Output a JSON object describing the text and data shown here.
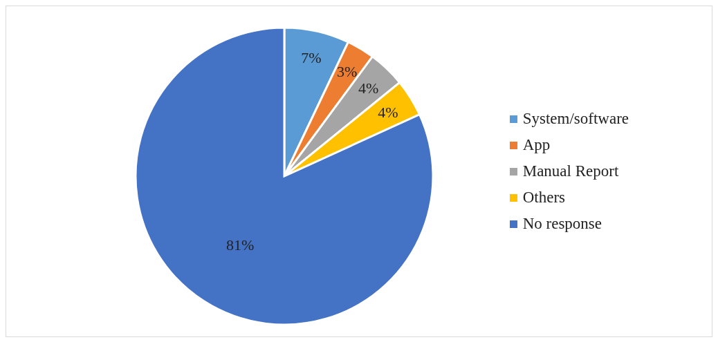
{
  "chart_data": {
    "type": "pie",
    "categories": [
      "System/software",
      "App",
      "Manual Report",
      "Others",
      "No response"
    ],
    "values": [
      7,
      3,
      4,
      4,
      81
    ],
    "colors": [
      "#5b9bd5",
      "#ed7d31",
      "#a5a5a5",
      "#ffc000",
      "#4472c4"
    ],
    "value_labels": [
      "7%",
      "3%",
      "4%",
      "4%",
      "81%"
    ],
    "legend": "right"
  }
}
